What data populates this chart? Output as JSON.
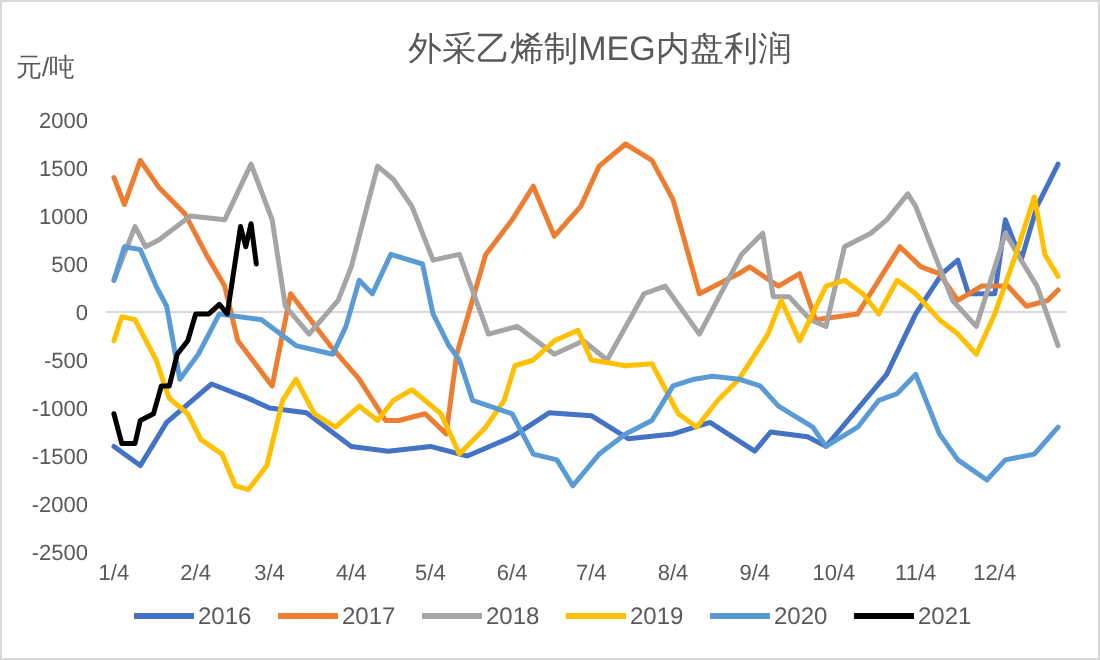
{
  "chart_data": {
    "type": "line",
    "title": "外采乙烯制MEG内盘利润",
    "ylabel": "元/吨",
    "xlim": [
      "--01-01",
      "--12-31"
    ],
    "ylim": [
      -2500,
      2000
    ],
    "yticks": [
      -2500,
      -2000,
      -1500,
      -1000,
      -500,
      0,
      500,
      1000,
      1500,
      2000
    ],
    "xticks": [
      {
        "value": "--01-04",
        "label": "1/4"
      },
      {
        "value": "--02-04",
        "label": "2/4"
      },
      {
        "value": "--03-04",
        "label": "3/4"
      },
      {
        "value": "--04-04",
        "label": "4/4"
      },
      {
        "value": "--05-04",
        "label": "5/4"
      },
      {
        "value": "--06-04",
        "label": "6/4"
      },
      {
        "value": "--07-04",
        "label": "7/4"
      },
      {
        "value": "--08-04",
        "label": "8/4"
      },
      {
        "value": "--09-04",
        "label": "9/4"
      },
      {
        "value": "--10-04",
        "label": "10/4"
      },
      {
        "value": "--11-04",
        "label": "11/4"
      },
      {
        "value": "--12-04",
        "label": "12/4"
      }
    ],
    "ref_lines": [
      {
        "axis": "y",
        "value": 0,
        "color": "#d9d9d9"
      }
    ],
    "grid": false,
    "legend": "bottom",
    "marker": "none",
    "line_style": "solid",
    "series": [
      {
        "name": "2016",
        "color": "#4472c4",
        "x": [
          "--01-04",
          "--01-14",
          "--01-24",
          "--02-10",
          "--02-24",
          "--03-04",
          "--03-18",
          "--04-04",
          "--04-18",
          "--05-04",
          "--05-18",
          "--06-04",
          "--06-18",
          "--07-04",
          "--07-18",
          "--08-04",
          "--08-18",
          "--09-04",
          "--09-10",
          "--09-24",
          "--10-01",
          "--10-24",
          "--11-04",
          "--11-14",
          "--11-20",
          "--11-24",
          "--12-04",
          "--12-08",
          "--12-14",
          "--12-20",
          "--12-28"
        ],
        "values": [
          -1400,
          -1600,
          -1150,
          -750,
          -900,
          -1000,
          -1050,
          -1400,
          -1450,
          -1400,
          -1500,
          -1300,
          -1050,
          -1080,
          -1320,
          -1270,
          -1150,
          -1450,
          -1250,
          -1300,
          -1400,
          -650,
          -20,
          400,
          540,
          190,
          190,
          960,
          540,
          1100,
          1540
        ]
      },
      {
        "name": "2017",
        "color": "#ed7d31",
        "x": [
          "--01-04",
          "--01-08",
          "--01-14",
          "--01-21",
          "--01-31",
          "--02-08",
          "--02-15",
          "--02-20",
          "--03-05",
          "--03-12",
          "--03-27",
          "--04-07",
          "--04-17",
          "--04-22",
          "--05-02",
          "--05-10",
          "--05-14",
          "--05-25",
          "--06-04",
          "--06-12",
          "--06-20",
          "--06-30",
          "--07-07",
          "--07-17",
          "--07-27",
          "--08-04",
          "--08-14",
          "--08-29",
          "--09-02",
          "--09-13",
          "--09-21",
          "--09-27",
          "--10-13",
          "--10-21",
          "--10-29",
          "--11-06",
          "--11-13",
          "--11-20",
          "--11-29",
          "--12-09",
          "--12-16",
          "--12-24",
          "--12-28"
        ],
        "values": [
          1400,
          1120,
          1580,
          1300,
          1020,
          600,
          270,
          -300,
          -770,
          190,
          -350,
          -700,
          -1130,
          -1130,
          -1060,
          -1270,
          -440,
          600,
          960,
          1310,
          790,
          1100,
          1520,
          1750,
          1580,
          1170,
          190,
          400,
          470,
          270,
          400,
          -80,
          -20,
          330,
          680,
          470,
          400,
          120,
          270,
          270,
          60,
          120,
          230
        ]
      },
      {
        "name": "2018",
        "color": "#a5a5a5",
        "x": [
          "--01-04",
          "--01-12",
          "--01-16",
          "--01-21",
          "--02-02",
          "--02-15",
          "--02-25",
          "--03-05",
          "--03-10",
          "--03-19",
          "--03-30",
          "--04-04",
          "--04-14",
          "--04-20",
          "--04-27",
          "--05-05",
          "--05-15",
          "--05-26",
          "--06-06",
          "--06-20",
          "--07-01",
          "--07-10",
          "--07-24",
          "--08-01",
          "--08-14",
          "--08-30",
          "--09-07",
          "--09-11",
          "--09-17",
          "--09-25",
          "--10-01",
          "--10-08",
          "--10-18",
          "--10-24",
          "--11-01",
          "--11-04",
          "--11-12",
          "--11-18",
          "--11-27",
          "--12-08",
          "--12-14",
          "--12-20",
          "--12-28"
        ],
        "values": [
          330,
          890,
          680,
          750,
          1000,
          960,
          1540,
          960,
          60,
          -230,
          120,
          470,
          1520,
          1380,
          1100,
          540,
          600,
          -230,
          -150,
          -440,
          -300,
          -500,
          190,
          270,
          -230,
          600,
          820,
          160,
          160,
          -80,
          -150,
          680,
          820,
          960,
          1230,
          1100,
          540,
          120,
          -150,
          820,
          540,
          270,
          -350
        ]
      },
      {
        "name": "2019",
        "color": "#ffc000",
        "x": [
          "--01-04",
          "--01-07",
          "--01-12",
          "--01-20",
          "--01-25",
          "--02-01",
          "--02-06",
          "--02-14",
          "--02-19",
          "--02-24",
          "--03-03",
          "--03-09",
          "--03-14",
          "--03-21",
          "--03-29",
          "--04-07",
          "--04-14",
          "--04-20",
          "--04-27",
          "--05-08",
          "--05-15",
          "--05-25",
          "--06-01",
          "--06-05",
          "--06-12",
          "--06-20",
          "--06-29",
          "--07-04",
          "--07-17",
          "--07-27",
          "--08-06",
          "--08-13",
          "--08-21",
          "--08-29",
          "--09-09",
          "--09-14",
          "--09-21",
          "--10-01",
          "--10-08",
          "--10-15",
          "--10-21",
          "--10-28",
          "--11-04",
          "--11-13",
          "--11-20",
          "--11-27",
          "--12-04",
          "--12-12",
          "--12-19",
          "--12-23",
          "--12-28"
        ],
        "values": [
          -300,
          -50,
          -80,
          -500,
          -900,
          -1060,
          -1330,
          -1480,
          -1810,
          -1850,
          -1600,
          -920,
          -700,
          -1060,
          -1200,
          -980,
          -1130,
          -920,
          -810,
          -1060,
          -1480,
          -1200,
          -920,
          -560,
          -500,
          -300,
          -190,
          -500,
          -560,
          -540,
          -1060,
          -1200,
          -920,
          -700,
          -230,
          120,
          -300,
          270,
          330,
          190,
          -20,
          330,
          190,
          -80,
          -230,
          -440,
          -20,
          600,
          1200,
          600,
          370
        ]
      },
      {
        "name": "2020",
        "color": "#5b9bd5",
        "x": [
          "--01-04",
          "--01-08",
          "--01-14",
          "--01-20",
          "--01-24",
          "--01-29",
          "--02-05",
          "--02-13",
          "--03-01",
          "--03-14",
          "--03-28",
          "--04-02",
          "--04-07",
          "--04-12",
          "--04-19",
          "--05-01",
          "--05-05",
          "--05-11",
          "--05-15",
          "--05-20",
          "--06-04",
          "--06-12",
          "--06-21",
          "--06-27",
          "--07-07",
          "--07-17",
          "--07-27",
          "--08-04",
          "--08-12",
          "--08-19",
          "--08-29",
          "--09-06",
          "--09-13",
          "--09-26",
          "--10-01",
          "--10-13",
          "--10-21",
          "--10-28",
          "--11-04",
          "--11-13",
          "--11-20",
          "--12-01",
          "--12-08",
          "--12-19",
          "--12-28"
        ],
        "values": [
          330,
          680,
          650,
          270,
          60,
          -700,
          -440,
          -20,
          -80,
          -350,
          -440,
          -150,
          330,
          190,
          600,
          500,
          -20,
          -350,
          -500,
          -920,
          -1060,
          -1480,
          -1540,
          -1810,
          -1480,
          -1270,
          -1130,
          -770,
          -700,
          -670,
          -700,
          -770,
          -980,
          -1200,
          -1400,
          -1200,
          -920,
          -850,
          -650,
          -1270,
          -1540,
          -1750,
          -1540,
          -1480,
          -1200
        ]
      },
      {
        "name": "2021",
        "color": "#000000",
        "x": [
          "--01-04",
          "--01-07",
          "--01-12",
          "--01-14",
          "--01-19",
          "--01-22",
          "--01-25",
          "--01-28",
          "--02-01",
          "--02-04",
          "--02-09",
          "--02-13",
          "--02-16",
          "--02-21",
          "--02-23",
          "--02-25",
          "--02-27"
        ],
        "values": [
          -1060,
          -1370,
          -1370,
          -1130,
          -1060,
          -770,
          -770,
          -440,
          -300,
          -20,
          -20,
          80,
          -20,
          890,
          680,
          920,
          500
        ]
      }
    ]
  }
}
